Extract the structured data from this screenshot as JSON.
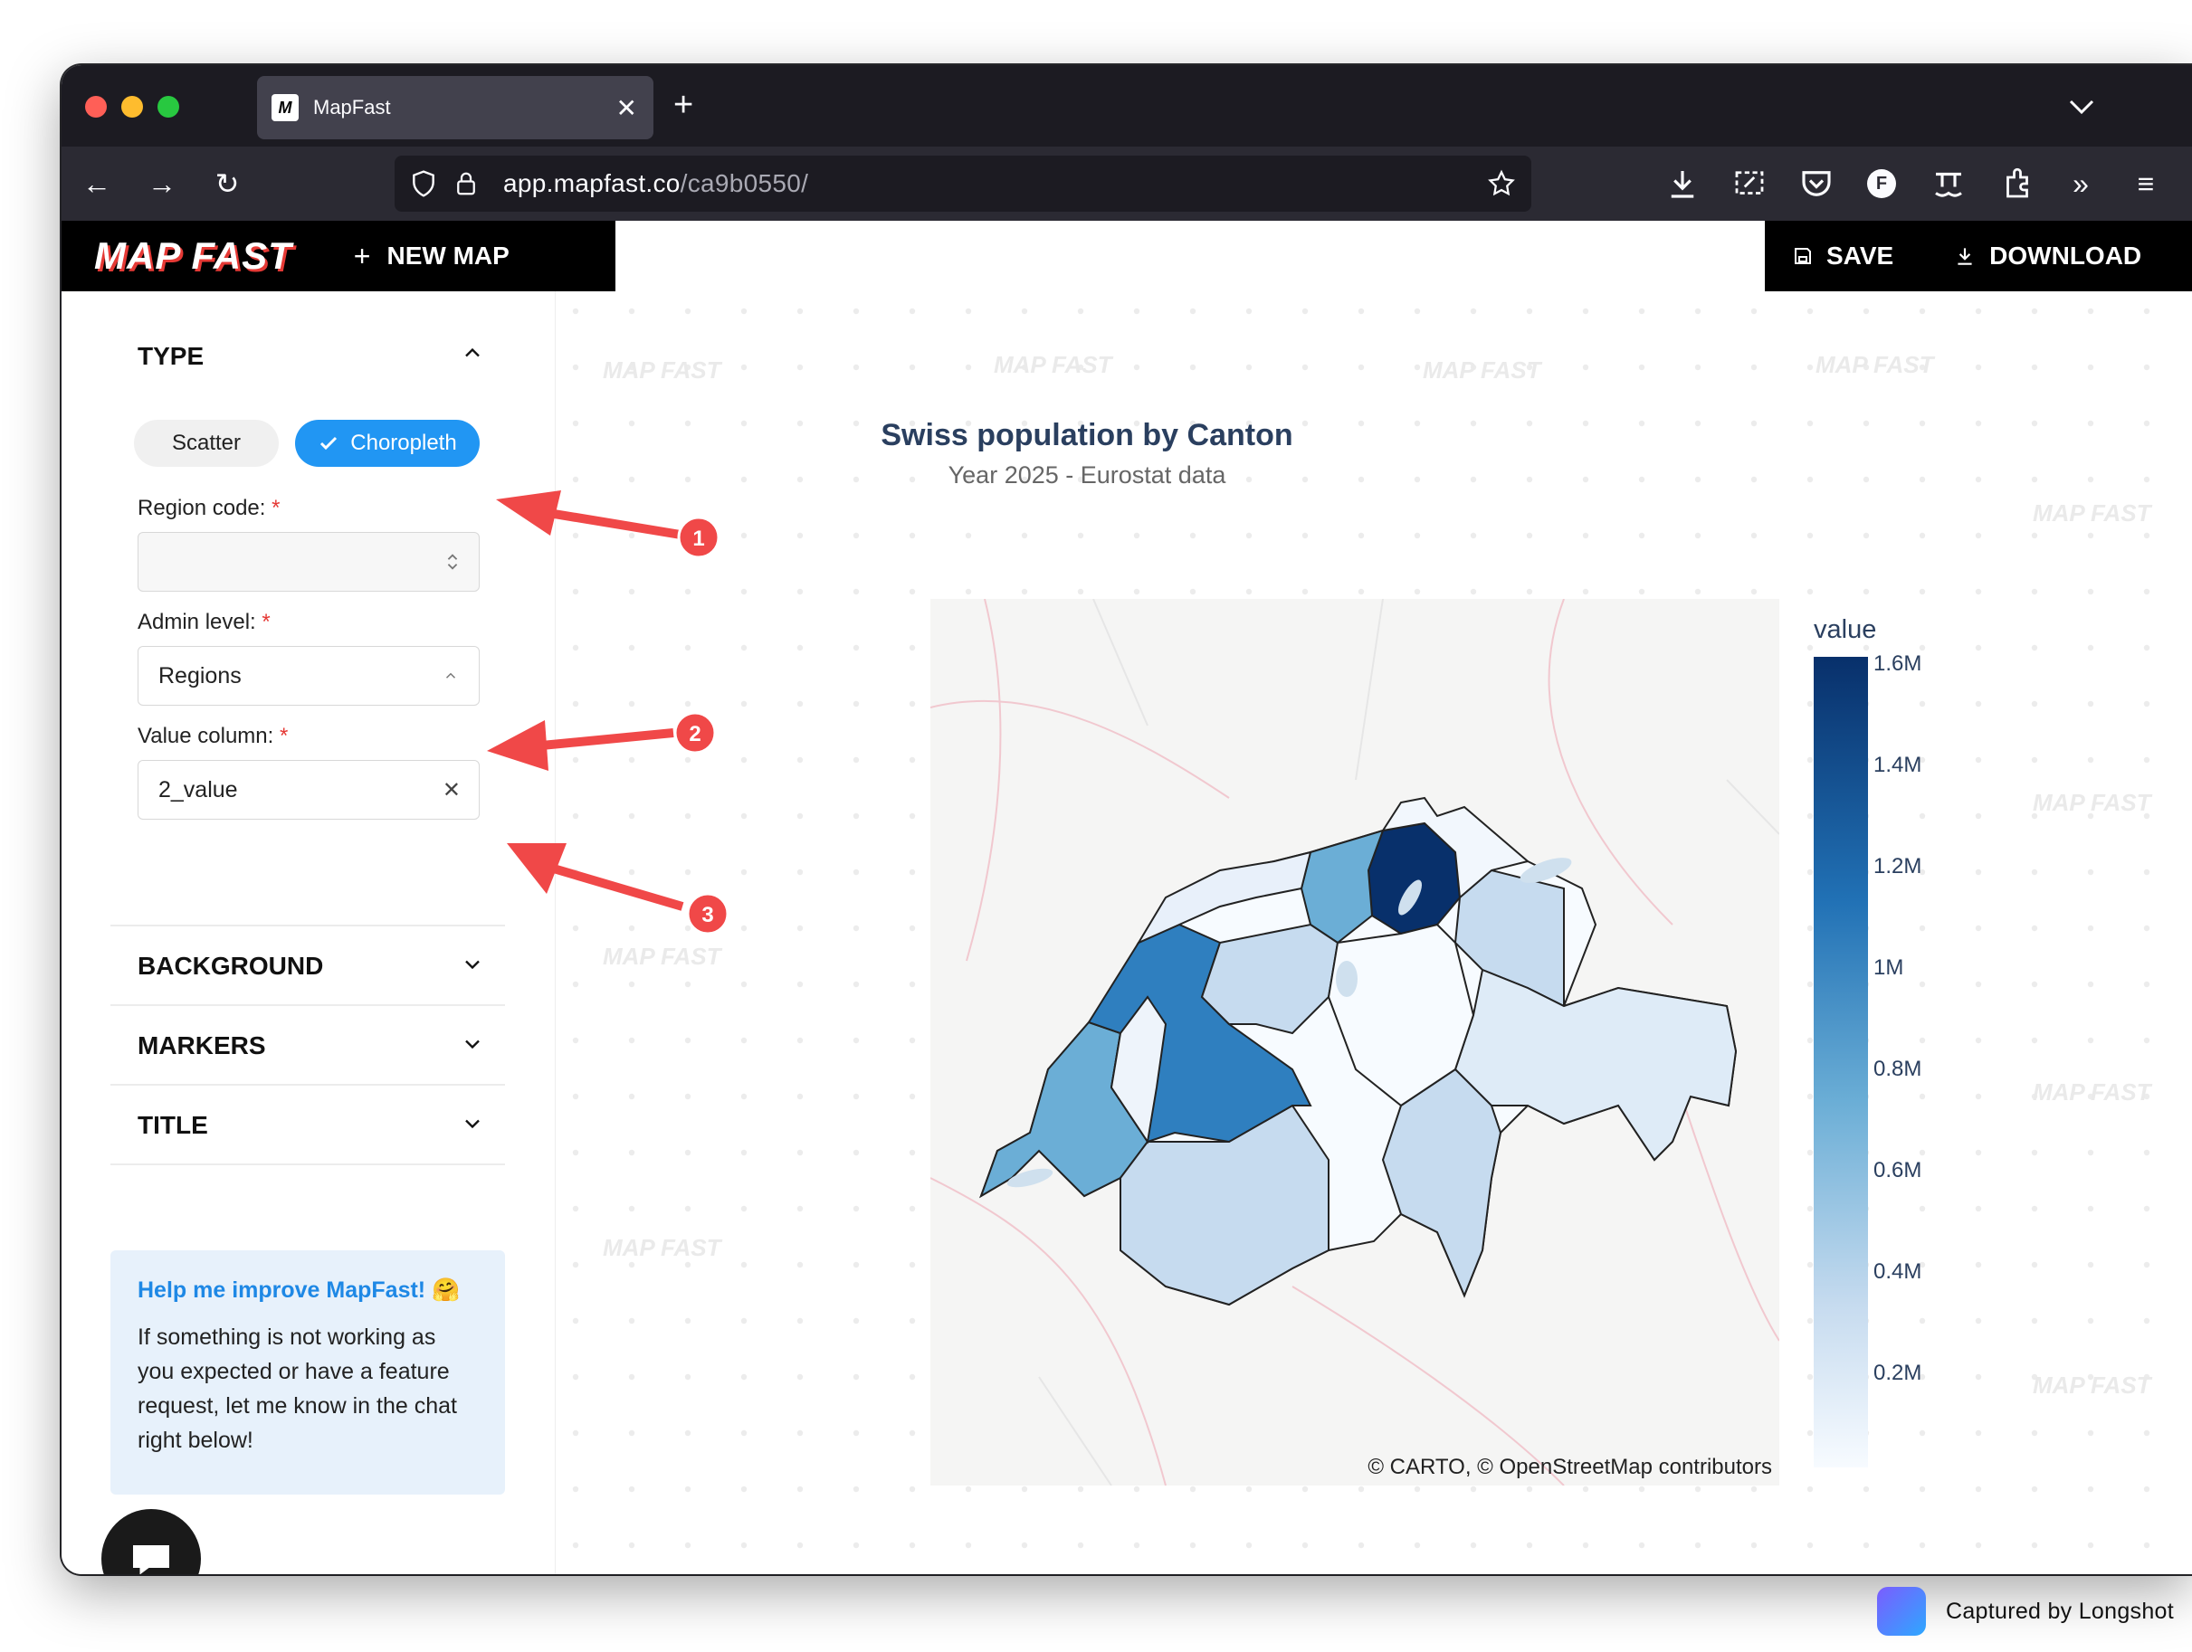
{
  "browser": {
    "tab_title": "MapFast",
    "tab_favicon": "mapfast-favicon",
    "url_domain": "app.mapfast.co",
    "url_path": "/ca9b0550/"
  },
  "app": {
    "brand": "MAP FAST",
    "new_map_label": "NEW MAP",
    "save_label": "SAVE",
    "download_label": "DOWNLOAD"
  },
  "sidebar": {
    "type_title": "TYPE",
    "scatter_label": "Scatter",
    "choropleth_label": "Choropleth",
    "region_code_label": "Region code:",
    "region_code_value": "",
    "admin_level_label": "Admin level:",
    "admin_level_value": "Regions",
    "value_column_label": "Value column:",
    "value_column_value": "2_value",
    "required_mark": "*",
    "background_title": "BACKGROUND",
    "markers_title": "MARKERS",
    "title_title": "TITLE",
    "help_title": "Help me improve MapFast! 🤗",
    "help_body": "If something is not working as you expected or have a feature request, let me know in the chat right below!"
  },
  "watermark": "MAP FAST",
  "chart": {
    "title": "Swiss population by Canton",
    "subtitle": "Year 2025 - Eurostat data",
    "attribution": "© CARTO, © OpenStreetMap contributors",
    "colorbar_title": "value",
    "colorbar_ticks": [
      "1.6M",
      "1.4M",
      "1.2M",
      "1M",
      "0.8M",
      "0.6M",
      "0.4M",
      "0.2M"
    ],
    "colorscale": [
      "#08306b",
      "#2171b5",
      "#6baed6",
      "#c6dbef",
      "#f7fbff"
    ]
  },
  "annotations": [
    "1",
    "2",
    "3"
  ],
  "footer": {
    "text": "Captured by Longshot"
  },
  "colors": {
    "accent": "#2196f3",
    "annotation_red": "#f04848",
    "dark": "#000000"
  }
}
